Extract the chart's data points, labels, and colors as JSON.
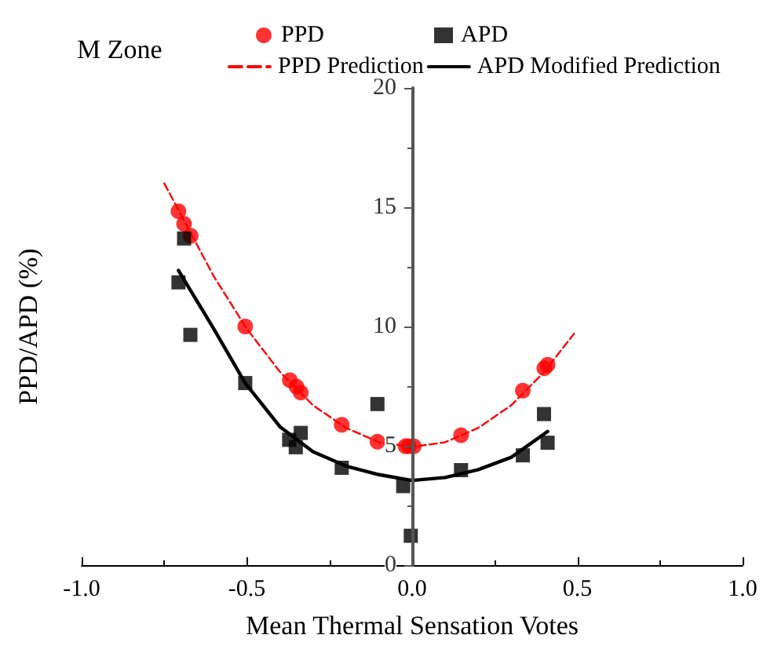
{
  "chart_data": {
    "type": "scatter",
    "title": "M Zone",
    "xlabel": "Mean Thermal Sensation Votes",
    "ylabel": "PPD/APD (%)",
    "xlim": [
      -1.0,
      1.0
    ],
    "xticks": [
      {
        "value": -1,
        "label": "-1.0"
      },
      {
        "value": -0.5,
        "label": "-0.5"
      },
      {
        "value": 0,
        "label": "0.0"
      },
      {
        "value": 0.5,
        "label": "0.5"
      },
      {
        "value": 1,
        "label": "1.0"
      }
    ],
    "ylim": [
      0,
      20
    ],
    "yticks": [
      0,
      5,
      10,
      15,
      20
    ],
    "grid": false,
    "legend": "top",
    "series": [
      {
        "name": "PPD",
        "color": "#ff0000",
        "marker": "circle",
        "x": [
          -0.707,
          -0.69,
          -0.67,
          -0.505,
          -0.37,
          -0.35,
          -0.337,
          -0.213,
          -0.105,
          -0.02,
          -0.01,
          0.005,
          0.148,
          0.335,
          0.4,
          0.41
        ],
        "values": [
          14.83,
          14.3,
          13.8,
          10.0,
          7.75,
          7.48,
          7.23,
          5.88,
          5.17,
          4.98,
          4.98,
          4.98,
          5.44,
          7.31,
          8.25,
          8.4
        ]
      },
      {
        "name": "APD",
        "color": "#000000",
        "marker": "square",
        "x": [
          -0.69,
          -0.707,
          -0.671,
          -0.505,
          -0.372,
          -0.352,
          -0.337,
          -0.213,
          -0.105,
          -0.027,
          -0.004,
          0.148,
          0.335,
          0.399,
          0.41
        ],
        "values": [
          13.69,
          11.85,
          9.65,
          7.63,
          5.25,
          4.94,
          5.54,
          4.08,
          6.75,
          3.31,
          1.23,
          3.98,
          4.6,
          6.33,
          5.13
        ]
      },
      {
        "type": "line",
        "name": "PPD Prediction",
        "color": "#ff0000",
        "marker": "none",
        "line_style": "dashed",
        "x": [
          -0.75,
          -0.6,
          -0.5,
          -0.4,
          -0.3,
          -0.2,
          -0.1,
          0,
          0.1,
          0.2,
          0.3,
          0.4,
          0.49
        ],
        "values": [
          16.0,
          12.1,
          9.9,
          8.1,
          6.7,
          5.75,
          5.15,
          4.95,
          5.15,
          5.75,
          6.7,
          8.1,
          9.7
        ]
      },
      {
        "type": "line",
        "name": "APD Modified Prediction",
        "color": "#000000",
        "marker": "none",
        "line_style": "solid",
        "x": [
          -0.707,
          -0.6,
          -0.505,
          -0.4,
          -0.3,
          -0.2,
          -0.1,
          0,
          0.1,
          0.2,
          0.3,
          0.41
        ],
        "values": [
          12.35,
          9.9,
          7.63,
          5.8,
          4.75,
          4.15,
          3.79,
          3.55,
          3.67,
          4.0,
          4.52,
          5.6
        ]
      }
    ]
  }
}
